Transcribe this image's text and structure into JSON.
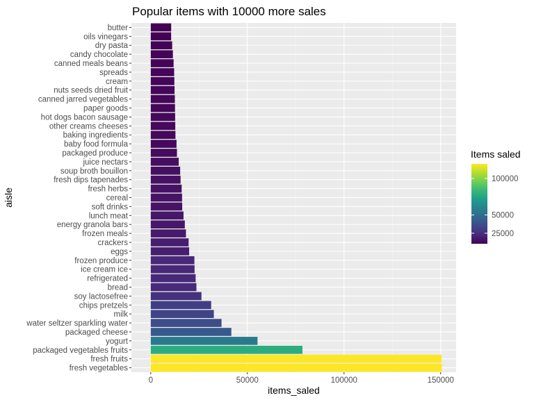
{
  "chart_data": {
    "type": "bar",
    "orientation": "horizontal",
    "title": "Popular items with 10000 more sales",
    "xlabel": "items_saled",
    "ylabel": "aisle",
    "xlim": [
      -10000,
      158000
    ],
    "xticks": [
      0,
      50000,
      100000,
      150000
    ],
    "xtick_labels": [
      "0",
      "50000",
      "100000",
      "150000"
    ],
    "categories": [
      "fresh vegetables",
      "fresh fruits",
      "packaged vegetables fruits",
      "yogurt",
      "packaged cheese",
      "water seltzer sparkling water",
      "milk",
      "chips pretzels",
      "soy lactosefree",
      "bread",
      "refrigerated",
      "ice cream ice",
      "frozen produce",
      "eggs",
      "crackers",
      "frozen meals",
      "energy granola bars",
      "lunch meat",
      "soft drinks",
      "cereal",
      "fresh herbs",
      "fresh dips tapenades",
      "soup broth bouillon",
      "juice nectars",
      "packaged produce",
      "baby food formula",
      "baking ingredients",
      "other creams cheeses",
      "hot dogs bacon sausage",
      "paper goods",
      "canned jarred vegetables",
      "nuts seeds dried fruit",
      "cream",
      "spreads",
      "canned meals beans",
      "candy chocolate",
      "dry pasta",
      "oils vinegars",
      "butter"
    ],
    "values": [
      150609,
      150473,
      78493,
      55240,
      41699,
      36617,
      32644,
      31269,
      26240,
      23635,
      23228,
      22676,
      22583,
      19875,
      19592,
      18221,
      17631,
      16957,
      16279,
      16201,
      16000,
      15433,
      15224,
      14462,
      13563,
      13336,
      12784,
      12693,
      12625,
      12551,
      12473,
      12319,
      12212,
      12109,
      11822,
      11453,
      11093,
      10553,
      10575
    ],
    "legend": {
      "title": "Items saled",
      "position": "right",
      "ticks": [
        25000,
        50000,
        100000
      ],
      "tick_labels": [
        "25000",
        "50000",
        "100000"
      ],
      "range": [
        10553,
        120000
      ]
    },
    "grid": true,
    "colormap": "viridis"
  },
  "colors": {
    "panel_background": "#ebebeb",
    "grid_major": "#ffffff",
    "grid_minor": "#f4f4f4"
  }
}
